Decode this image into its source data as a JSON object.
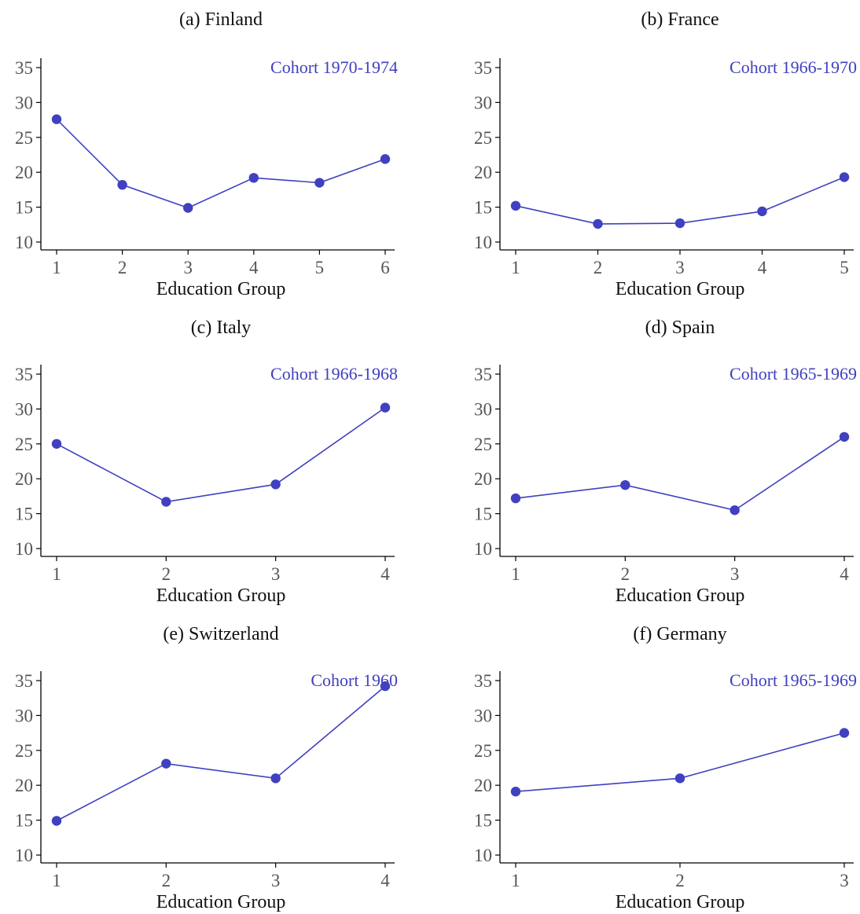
{
  "style": {
    "series_color": "#4040c0",
    "axis_color": "#000000",
    "tick_color": "#555555"
  },
  "chart_data": [
    {
      "type": "line",
      "title": "(a) Finland",
      "annotation": "Cohort 1970-1974",
      "xlabel": "Education Group",
      "ylabel": "",
      "x": [
        1,
        2,
        3,
        4,
        5,
        6
      ],
      "values": [
        27.6,
        18.2,
        14.9,
        19.2,
        18.5,
        21.9
      ],
      "ylim": [
        10,
        35
      ],
      "yticks": [
        10,
        15,
        20,
        25,
        30,
        35
      ],
      "grid": false,
      "legend": "none"
    },
    {
      "type": "line",
      "title": "(b) France",
      "annotation": "Cohort 1966-1970",
      "xlabel": "Education Group",
      "ylabel": "",
      "x": [
        1,
        2,
        3,
        4,
        5
      ],
      "values": [
        15.2,
        12.6,
        12.7,
        14.4,
        19.3
      ],
      "ylim": [
        10,
        35
      ],
      "yticks": [
        10,
        15,
        20,
        25,
        30,
        35
      ],
      "grid": false,
      "legend": "none"
    },
    {
      "type": "line",
      "title": "(c) Italy",
      "annotation": "Cohort 1966-1968",
      "xlabel": "Education Group",
      "ylabel": "",
      "x": [
        1,
        2,
        3,
        4
      ],
      "values": [
        25.0,
        16.7,
        19.2,
        30.2
      ],
      "ylim": [
        10,
        35
      ],
      "yticks": [
        10,
        15,
        20,
        25,
        30,
        35
      ],
      "grid": false,
      "legend": "none"
    },
    {
      "type": "line",
      "title": "(d) Spain",
      "annotation": "Cohort 1965-1969",
      "xlabel": "Education Group",
      "ylabel": "",
      "x": [
        1,
        2,
        3,
        4
      ],
      "values": [
        17.2,
        19.1,
        15.5,
        26.0
      ],
      "ylim": [
        10,
        35
      ],
      "yticks": [
        10,
        15,
        20,
        25,
        30,
        35
      ],
      "grid": false,
      "legend": "none"
    },
    {
      "type": "line",
      "title": "(e) Switzerland",
      "annotation": "Cohort 1960",
      "xlabel": "Education Group",
      "ylabel": "",
      "x": [
        1,
        2,
        3,
        4
      ],
      "values": [
        14.9,
        23.1,
        21.0,
        34.2
      ],
      "ylim": [
        10,
        35
      ],
      "yticks": [
        10,
        15,
        20,
        25,
        30,
        35
      ],
      "grid": false,
      "legend": "none"
    },
    {
      "type": "line",
      "title": "(f) Germany",
      "annotation": "Cohort 1965-1969",
      "xlabel": "Education Group",
      "ylabel": "",
      "x": [
        1,
        2,
        3
      ],
      "values": [
        19.1,
        21.0,
        27.5
      ],
      "ylim": [
        10,
        35
      ],
      "yticks": [
        10,
        15,
        20,
        25,
        30,
        35
      ],
      "grid": false,
      "legend": "none"
    }
  ]
}
